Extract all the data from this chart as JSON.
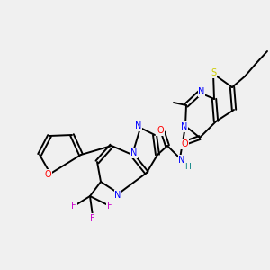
{
  "bg_color": "#f0f0f0",
  "figsize": [
    3.0,
    3.0
  ],
  "dpi": 100,
  "lw": 1.4,
  "fs": 7.0,
  "atom_colors": {
    "N": "#0000ff",
    "O": "#ff0000",
    "S": "#cccc00",
    "F": "#cc00cc",
    "H": "#008080",
    "C": "#000000"
  }
}
